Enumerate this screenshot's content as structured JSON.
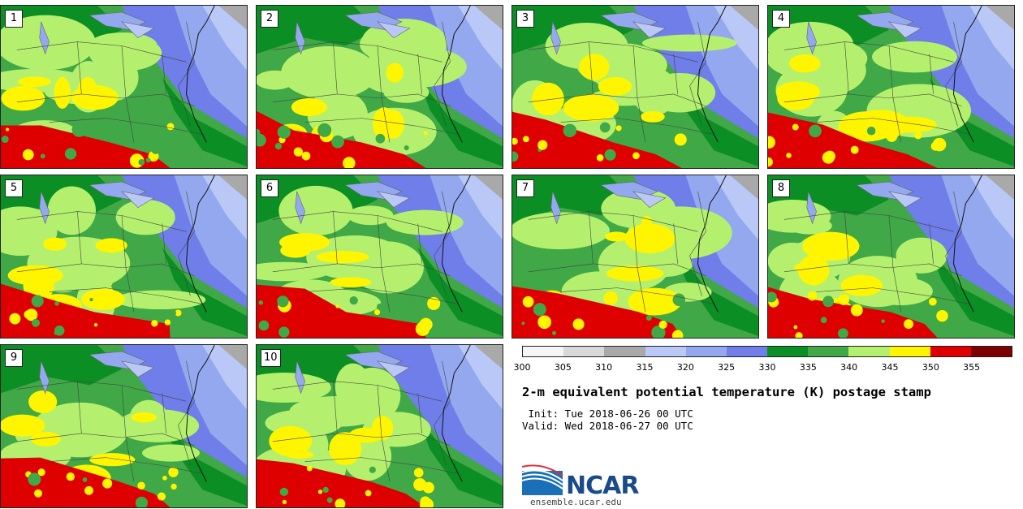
{
  "title": "2-m equivalent potential temperature (K) postage stamp",
  "init_line": " Init: Tue 2018-06-26 00 UTC",
  "valid_line": "Valid: Wed 2018-06-27 00 UTC",
  "members": [
    "1",
    "2",
    "3",
    "4",
    "5",
    "6",
    "7",
    "8",
    "9",
    "10"
  ],
  "colorbar": {
    "ticks": [
      "300",
      "305",
      "310",
      "315",
      "320",
      "325",
      "330",
      "335",
      "340",
      "345",
      "350",
      "355"
    ],
    "colors": [
      "#f6f6f6",
      "#d9d9d9",
      "#a9a9a9",
      "#b9c8f6",
      "#94a8ef",
      "#6f7ee8",
      "#0b8e24",
      "#40a846",
      "#b4f06e",
      "#fff500",
      "#de0000",
      "#7d0000"
    ]
  },
  "logo": {
    "text": "NCAR",
    "url": "ensemble.ucar.edu"
  }
}
